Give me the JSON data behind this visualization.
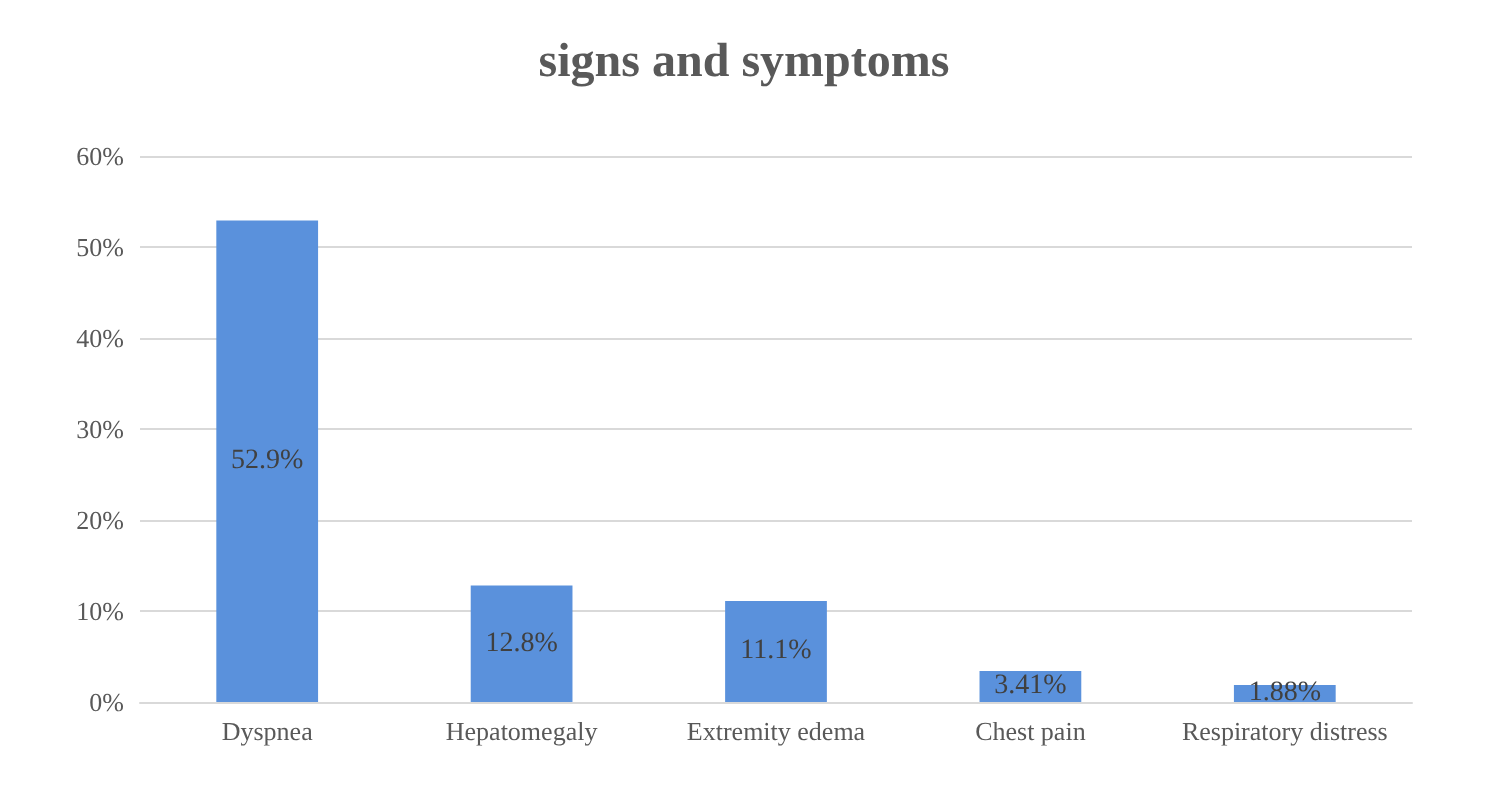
{
  "chart_data": {
    "type": "bar",
    "title": "signs and symptoms",
    "categories": [
      "Dyspnea",
      "Hepatomegaly",
      "Extremity edema",
      "Chest pain",
      "Respiratory distress"
    ],
    "values": [
      52.9,
      12.8,
      11.1,
      3.41,
      1.88
    ],
    "value_labels": [
      "52.9%",
      "12.8%",
      "11.1%",
      "3.41%",
      "1.88%"
    ],
    "color": "#5a91dc",
    "ylim": [
      0,
      60
    ],
    "yticks": [
      {
        "value": 0,
        "label": "0%"
      },
      {
        "value": 10,
        "label": "10%"
      },
      {
        "value": 20,
        "label": "20%"
      },
      {
        "value": 30,
        "label": "30%"
      },
      {
        "value": 40,
        "label": "40%"
      },
      {
        "value": 50,
        "label": "50%"
      },
      {
        "value": 60,
        "label": "60%"
      }
    ],
    "grid": "y"
  }
}
